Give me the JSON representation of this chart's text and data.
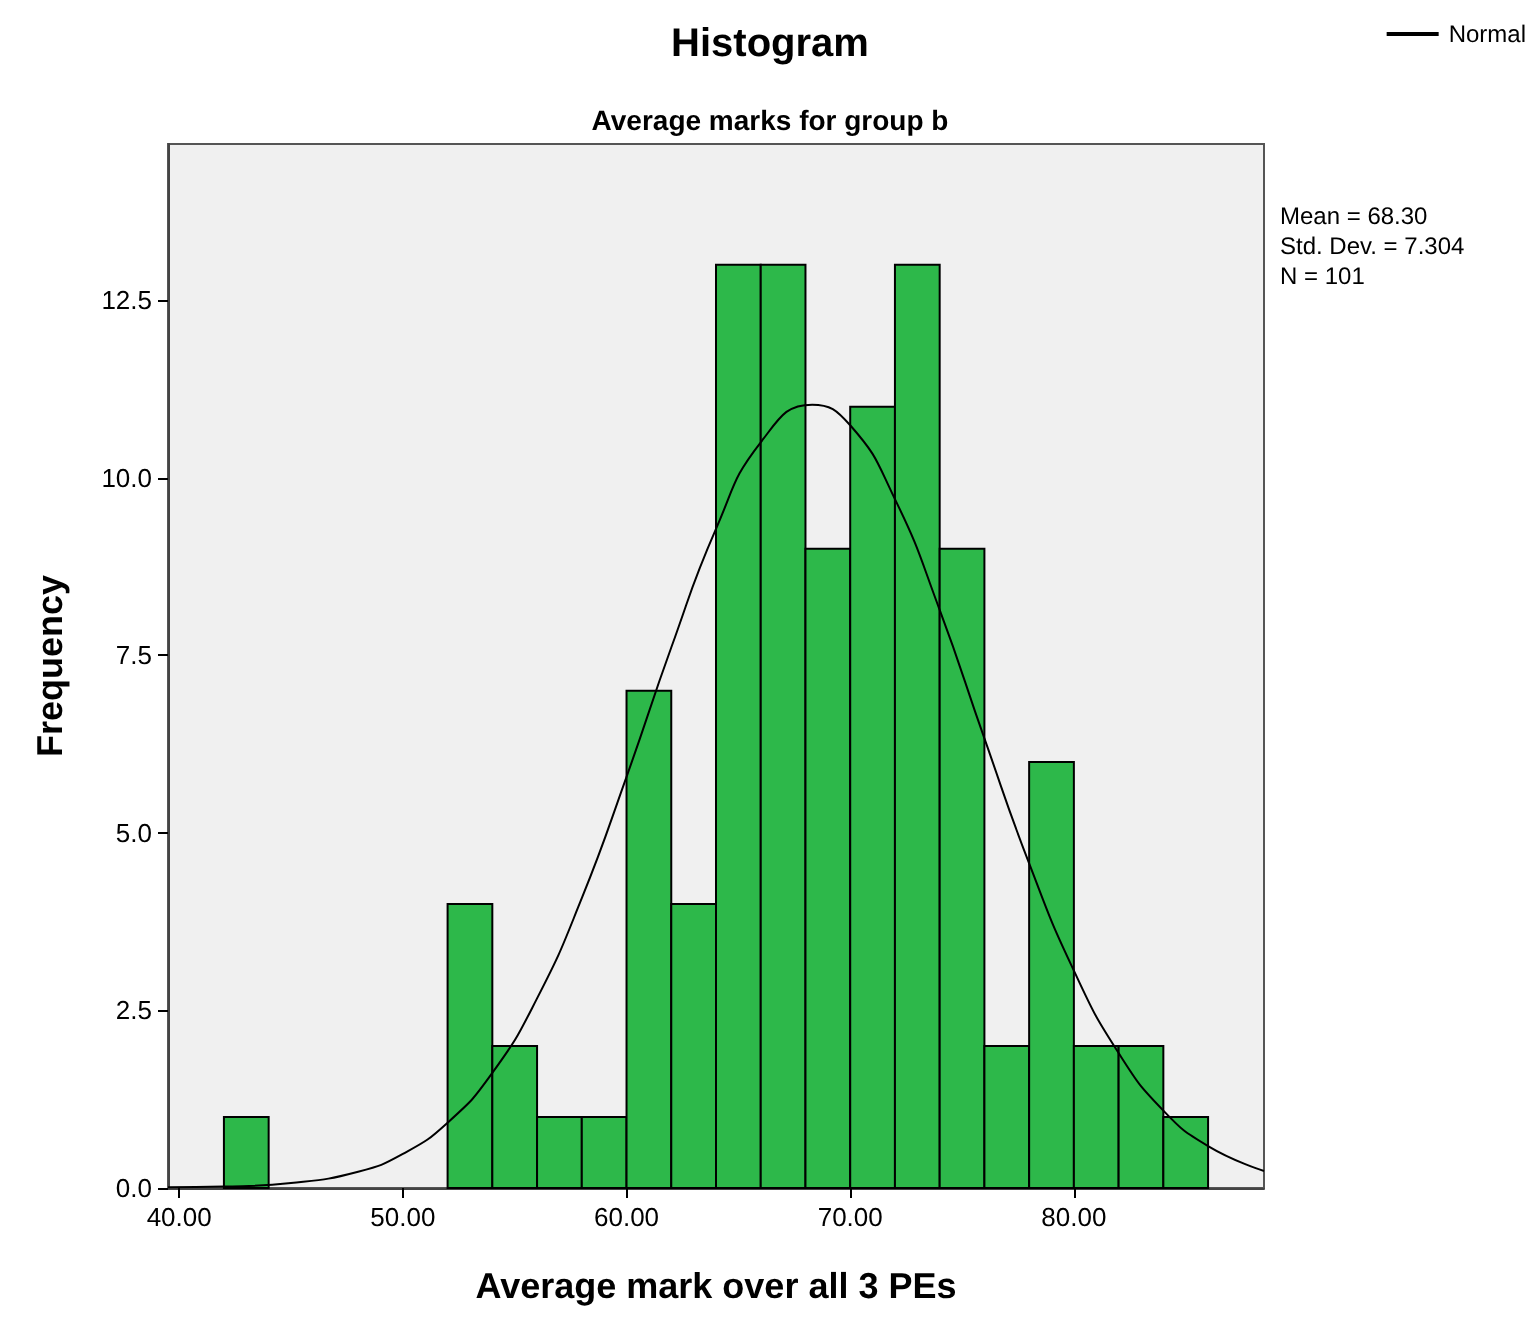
{
  "chart_data": {
    "type": "histogram",
    "title": "Histogram",
    "subtitle": "Average marks for group b",
    "xlabel": "Average mark over all 3 PEs",
    "ylabel": "Frequency",
    "bins": [
      42,
      44,
      46,
      48,
      50,
      52,
      54,
      56,
      58,
      60,
      62,
      64,
      66,
      68,
      70,
      72,
      74,
      76,
      78,
      80,
      82,
      84,
      86
    ],
    "values": [
      1,
      0,
      0,
      0,
      0,
      4,
      2,
      1,
      1,
      7,
      4,
      13,
      13,
      9,
      11,
      13,
      9,
      2,
      6,
      2,
      2,
      1
    ],
    "color": "#2db84a",
    "series": [
      {
        "type": "line",
        "name": "Normal",
        "color": "#000000",
        "x": [
          39.5,
          42,
          45,
          48,
          50,
          52,
          54,
          56,
          58,
          60,
          62,
          64,
          66,
          68.3,
          70,
          72,
          74,
          76,
          78,
          80,
          82,
          84,
          86,
          88.5
        ],
        "values": [
          0.01,
          0.02,
          0.07,
          0.23,
          0.48,
          0.92,
          1.62,
          2.67,
          4.08,
          5.79,
          7.61,
          9.28,
          10.5,
          11.03,
          10.74,
          9.7,
          8.14,
          6.33,
          4.57,
          3.06,
          1.9,
          1.09,
          0.59,
          0.24
        ]
      }
    ],
    "annotations": [
      "Mean = 68.30",
      "Std. Dev. = 7.304",
      "N = 101"
    ],
    "xlim": [
      39.5,
      88.5
    ],
    "xticks": [
      {
        "value": 40,
        "label": "40.00"
      },
      {
        "value": 50,
        "label": "50.00"
      },
      {
        "value": 60,
        "label": "60.00"
      },
      {
        "value": 70,
        "label": "70.00"
      },
      {
        "value": 80,
        "label": "80.00"
      }
    ],
    "ylim": [
      0,
      14.7
    ],
    "yticks": [
      {
        "value": 0,
        "label": "0.0"
      },
      {
        "value": 2.5,
        "label": "2.5"
      },
      {
        "value": 5,
        "label": "5.0"
      },
      {
        "value": 7.5,
        "label": "7.5"
      },
      {
        "value": 10,
        "label": "10.0"
      },
      {
        "value": 12.5,
        "label": "12.5"
      }
    ],
    "grid": false,
    "legend": "top right"
  }
}
